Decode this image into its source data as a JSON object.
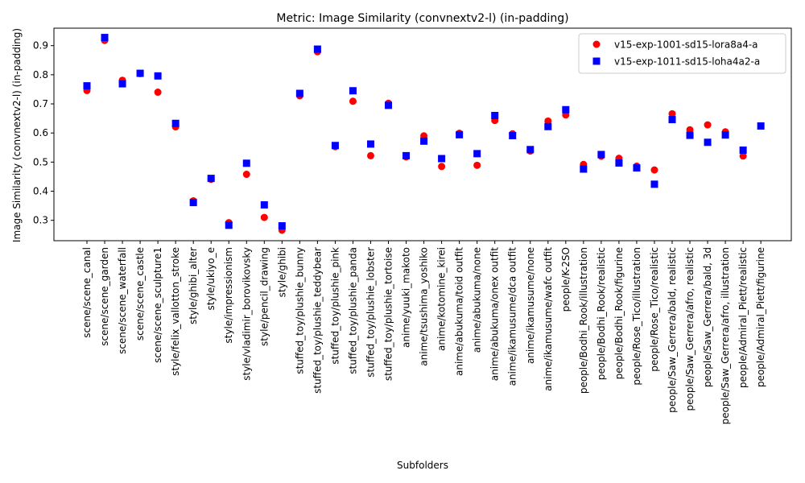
{
  "chart_data": {
    "type": "scatter",
    "title": "Metric: Image Similarity (convnextv2-l) (in-padding)",
    "xlabel": "Subfolders",
    "ylabel": "Image Similarity (convnextv2-l) (in-padding)",
    "ylim": [
      0.23,
      0.96
    ],
    "yticks": [
      0.3,
      0.4,
      0.5,
      0.6,
      0.7,
      0.8,
      0.9
    ],
    "grid": false,
    "legend_position": "top-right",
    "categories": [
      "scene/scene_canal",
      "scene/scene_garden",
      "scene/scene_waterfall",
      "scene/scene_castle",
      "scene/scene_sculpture1",
      "style/felix_vallotton_stroke",
      "style/ghibi_alter",
      "style/ukiyo_e",
      "style/impressionism",
      "style/vladimir_borovikovsky",
      "style/pencil_drawing",
      "style/ghibi",
      "stuffed_toy/plushie_bunny",
      "stuffed_toy/plushie_teddybear",
      "stuffed_toy/plushie_pink",
      "stuffed_toy/plushie_panda",
      "stuffed_toy/plushie_lobster",
      "stuffed_toy/plushie_tortoise",
      "anime/yuuki_makoto",
      "anime/tsushima_yoshiko",
      "anime/kotomine_kirei",
      "anime/abukuma/toid outfit",
      "anime/abukuma/none",
      "anime/abukuma/onex outfit",
      "anime/ikamusume/dca outfit",
      "anime/ikamusume/none",
      "anime/ikamusume/wafc outfit",
      "people/K-2SO",
      "people/Bodhi_Rook/illustration",
      "people/Bodhi_Rook/realistic",
      "people/Bodhi_Rook/figurine",
      "people/Rose_Tico/illustration",
      "people/Rose_Tico/realistic",
      "people/Saw_Gerrera/bald, realistic",
      "people/Saw_Gerrera/afro, realistic",
      "people/Saw_Gerrera/bald, 3d",
      "people/Saw_Gerrera/afro, illustration",
      "people/Admiral_Piett/realistic",
      "people/Admiral_Piett/figurine"
    ],
    "series": [
      {
        "name": "v15-exp-1001-sd15-lora8a4-a",
        "color": "#ff0000",
        "marker": "circle",
        "values": [
          0.746,
          0.918,
          0.781,
          0.804,
          0.74,
          0.621,
          0.367,
          0.441,
          0.292,
          0.458,
          0.31,
          0.266,
          0.728,
          0.879,
          0.553,
          0.709,
          0.522,
          0.702,
          0.518,
          0.59,
          0.485,
          0.599,
          0.489,
          0.643,
          0.597,
          0.538,
          0.641,
          0.662,
          0.492,
          0.52,
          0.513,
          0.486,
          0.473,
          0.666,
          0.611,
          0.628,
          0.604,
          0.521,
          null
        ]
      },
      {
        "name": "v15-exp-1011-sd15-loha4a2-a",
        "color": "#0000ff",
        "marker": "square",
        "values": [
          0.762,
          0.928,
          0.769,
          0.805,
          0.796,
          0.633,
          0.361,
          0.444,
          0.283,
          0.496,
          0.353,
          0.281,
          0.736,
          0.888,
          0.557,
          0.745,
          0.562,
          0.695,
          0.522,
          0.572,
          0.512,
          0.594,
          0.529,
          0.66,
          0.591,
          0.543,
          0.622,
          0.68,
          0.476,
          0.526,
          0.497,
          0.48,
          0.424,
          0.646,
          0.592,
          0.568,
          0.593,
          0.541,
          0.624
        ]
      }
    ]
  }
}
